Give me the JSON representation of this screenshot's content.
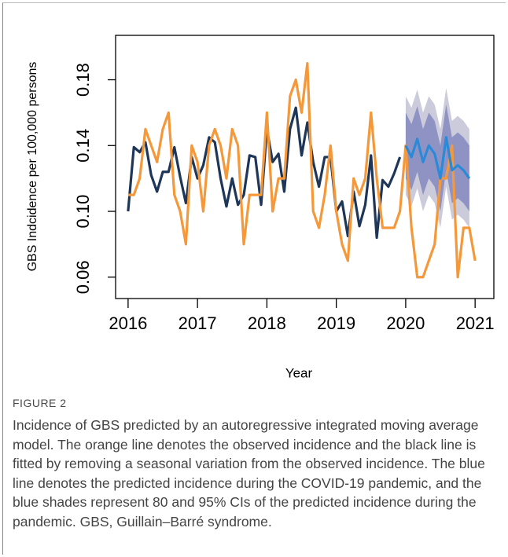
{
  "chart_data": {
    "type": "line",
    "xlabel": "Year",
    "ylabel": "GBS Indcidence per 100,000 persons",
    "xlim": [
      2015.82,
      2021.27
    ],
    "ylim": [
      0.047,
      0.207
    ],
    "xticks": [
      2016,
      2017,
      2018,
      2019,
      2020,
      2021
    ],
    "yticks": [
      0.06,
      {
        "value": 0.1,
        "label": "0.10"
      },
      0.14,
      0.18
    ],
    "x": [
      2016,
      2016.083,
      2016.167,
      2016.25,
      2016.333,
      2016.417,
      2016.5,
      2016.583,
      2016.667,
      2016.75,
      2016.833,
      2016.917,
      2017,
      2017.083,
      2017.167,
      2017.25,
      2017.333,
      2017.417,
      2017.5,
      2017.583,
      2017.667,
      2017.75,
      2017.833,
      2017.917,
      2018,
      2018.083,
      2018.167,
      2018.25,
      2018.333,
      2018.417,
      2018.5,
      2018.583,
      2018.667,
      2018.75,
      2018.833,
      2018.917,
      2019,
      2019.083,
      2019.167,
      2019.25,
      2019.333,
      2019.417,
      2019.5,
      2019.583,
      2019.667,
      2019.75,
      2019.833,
      2019.917,
      2020,
      2020.083,
      2020.167,
      2020.25,
      2020.333,
      2020.417,
      2020.5,
      2020.583,
      2020.667,
      2020.75,
      2020.833,
      2020.917,
      2021
    ],
    "bands": [
      {
        "color": "#cbcbdb",
        "lo": [
          null,
          null,
          null,
          null,
          null,
          null,
          null,
          null,
          null,
          null,
          null,
          null,
          null,
          null,
          null,
          null,
          null,
          null,
          null,
          null,
          null,
          null,
          null,
          null,
          null,
          null,
          null,
          null,
          null,
          null,
          null,
          null,
          null,
          null,
          null,
          null,
          null,
          null,
          null,
          null,
          null,
          null,
          null,
          null,
          null,
          null,
          null,
          null,
          0.11,
          0.103,
          0.114,
          0.1,
          0.11,
          0.105,
          0.09,
          0.115,
          0.095,
          0.098,
          0.095,
          0.09,
          null
        ],
        "hi": [
          null,
          null,
          null,
          null,
          null,
          null,
          null,
          null,
          null,
          null,
          null,
          null,
          null,
          null,
          null,
          null,
          null,
          null,
          null,
          null,
          null,
          null,
          null,
          null,
          null,
          null,
          null,
          null,
          null,
          null,
          null,
          null,
          null,
          null,
          null,
          null,
          null,
          null,
          null,
          null,
          null,
          null,
          null,
          null,
          null,
          null,
          null,
          null,
          0.17,
          0.163,
          0.174,
          0.16,
          0.17,
          0.165,
          0.15,
          0.175,
          0.155,
          0.158,
          0.155,
          0.15,
          null
        ]
      },
      {
        "color": "#8f93c4",
        "lo": [
          null,
          null,
          null,
          null,
          null,
          null,
          null,
          null,
          null,
          null,
          null,
          null,
          null,
          null,
          null,
          null,
          null,
          null,
          null,
          null,
          null,
          null,
          null,
          null,
          null,
          null,
          null,
          null,
          null,
          null,
          null,
          null,
          null,
          null,
          null,
          null,
          null,
          null,
          null,
          null,
          null,
          null,
          null,
          null,
          null,
          null,
          null,
          null,
          0.12,
          0.113,
          0.124,
          0.11,
          0.12,
          0.115,
          0.1,
          0.125,
          0.105,
          0.108,
          0.105,
          0.1,
          null
        ],
        "hi": [
          null,
          null,
          null,
          null,
          null,
          null,
          null,
          null,
          null,
          null,
          null,
          null,
          null,
          null,
          null,
          null,
          null,
          null,
          null,
          null,
          null,
          null,
          null,
          null,
          null,
          null,
          null,
          null,
          null,
          null,
          null,
          null,
          null,
          null,
          null,
          null,
          null,
          null,
          null,
          null,
          null,
          null,
          null,
          null,
          null,
          null,
          null,
          null,
          0.16,
          0.153,
          0.164,
          0.15,
          0.16,
          0.155,
          0.14,
          0.165,
          0.145,
          0.148,
          0.145,
          0.14,
          null
        ]
      }
    ],
    "series": [
      {
        "color": "#1e3658",
        "values": [
          0.1,
          0.139,
          0.136,
          0.142,
          0.122,
          0.112,
          0.124,
          0.124,
          0.139,
          0.121,
          0.105,
          0.133,
          0.12,
          0.128,
          0.145,
          0.142,
          0.12,
          0.103,
          0.12,
          0.104,
          0.11,
          0.134,
          0.133,
          0.104,
          0.15,
          0.13,
          0.135,
          0.112,
          0.15,
          0.163,
          0.134,
          0.154,
          0.13,
          0.115,
          0.133,
          0.133,
          0.1,
          0.106,
          0.085,
          0.112,
          0.091,
          0.104,
          0.134,
          0.084,
          0.119,
          0.115,
          0.123,
          0.133,
          null,
          null,
          null,
          null,
          null,
          null,
          null,
          null,
          null,
          null,
          null,
          null,
          null
        ]
      },
      {
        "color": "#f5983a",
        "values": [
          0.11,
          0.11,
          0.12,
          0.15,
          0.14,
          0.13,
          0.15,
          0.16,
          0.11,
          0.1,
          0.08,
          0.14,
          0.13,
          0.1,
          0.14,
          0.15,
          0.14,
          0.12,
          0.15,
          0.14,
          0.08,
          0.11,
          0.11,
          0.11,
          0.16,
          0.1,
          0.12,
          0.12,
          0.17,
          0.18,
          0.16,
          0.19,
          0.1,
          0.09,
          0.11,
          0.14,
          0.1,
          0.08,
          0.07,
          0.12,
          0.11,
          0.12,
          0.16,
          0.12,
          0.09,
          0.09,
          0.09,
          0.1,
          0.14,
          0.09,
          0.06,
          0.06,
          0.07,
          0.08,
          0.12,
          0.12,
          0.14,
          0.06,
          0.09,
          0.09,
          0.07
        ]
      },
      {
        "color": "#2b8ad8",
        "values": [
          null,
          null,
          null,
          null,
          null,
          null,
          null,
          null,
          null,
          null,
          null,
          null,
          null,
          null,
          null,
          null,
          null,
          null,
          null,
          null,
          null,
          null,
          null,
          null,
          null,
          null,
          null,
          null,
          null,
          null,
          null,
          null,
          null,
          null,
          null,
          null,
          null,
          null,
          null,
          null,
          null,
          null,
          null,
          null,
          null,
          null,
          null,
          null,
          0.14,
          0.133,
          0.144,
          0.13,
          0.14,
          0.135,
          0.12,
          0.145,
          0.125,
          0.128,
          0.125,
          0.12,
          null
        ]
      }
    ]
  },
  "figure": {
    "label": "FIGURE 2",
    "caption": "Incidence of GBS predicted by an autoregressive integrated moving average model. The orange line denotes the observed incidence and the black line is fitted by removing a seasonal variation from the observed incidence. The blue line denotes the predicted incidence during the COVID-19 pandemic, and the blue shades represent 80 and 95% CIs of the predicted incidence during the pandemic. GBS, Guillain–Barré syndrome."
  }
}
